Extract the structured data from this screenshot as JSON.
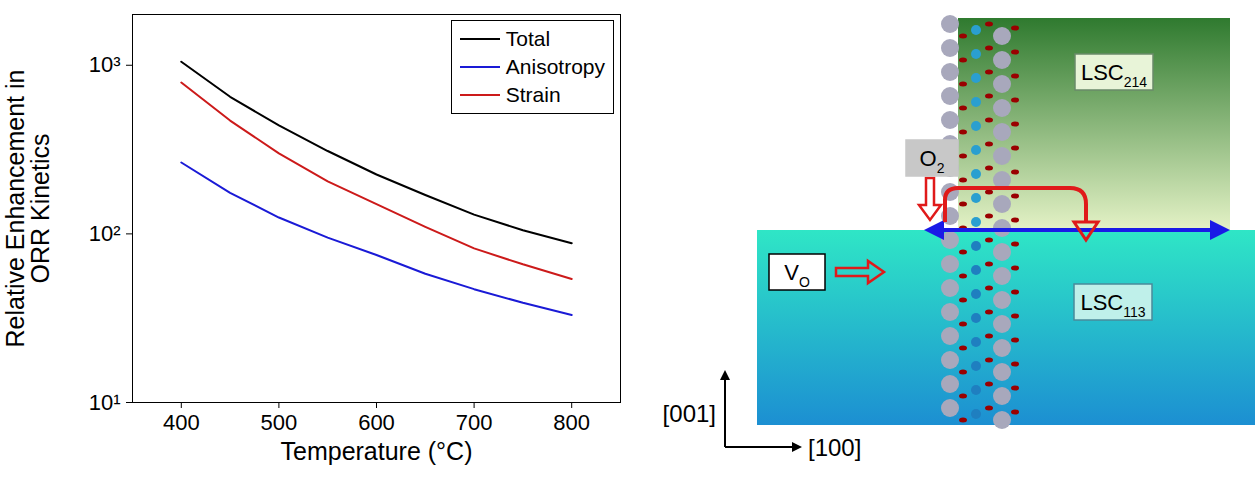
{
  "chart_data": {
    "type": "line",
    "xlabel": "Temperature (°C)",
    "ylabel": "Relative Enhancement in\nORR Kinetics",
    "x": [
      400,
      450,
      500,
      550,
      600,
      650,
      700,
      750,
      800
    ],
    "series": [
      {
        "name": "Total",
        "color": "#000000",
        "values": [
          1050,
          650,
          440,
          310,
          225,
          170,
          130,
          105,
          88
        ]
      },
      {
        "name": "Anisotropy",
        "color": "#1a1ad6",
        "values": [
          265,
          175,
          125,
          95,
          75,
          58,
          47,
          39,
          33
        ]
      },
      {
        "name": "Strain",
        "color": "#cc1a1a",
        "values": [
          790,
          470,
          300,
          205,
          150,
          110,
          82,
          66,
          54
        ]
      }
    ],
    "xlim": [
      350,
      850
    ],
    "xticks": [
      400,
      500,
      600,
      700,
      800
    ],
    "ylim": [
      10,
      2000
    ],
    "yticks": [
      {
        "value": 10,
        "label": "10¹"
      },
      {
        "value": 100,
        "label": "10²"
      },
      {
        "value": 1000,
        "label": "10³"
      }
    ],
    "log": "y",
    "legend": "upper right"
  },
  "diagram": {
    "top_phase": {
      "text": "LSC",
      "subscript": "214"
    },
    "bottom_phase": {
      "text": "LSC",
      "subscript": "113"
    },
    "gas": {
      "text": "O",
      "subscript": "2"
    },
    "vacancy": {
      "text": "V",
      "subscript": "O"
    },
    "axes": {
      "vertical": "[001]",
      "horizontal": "[100]"
    }
  }
}
